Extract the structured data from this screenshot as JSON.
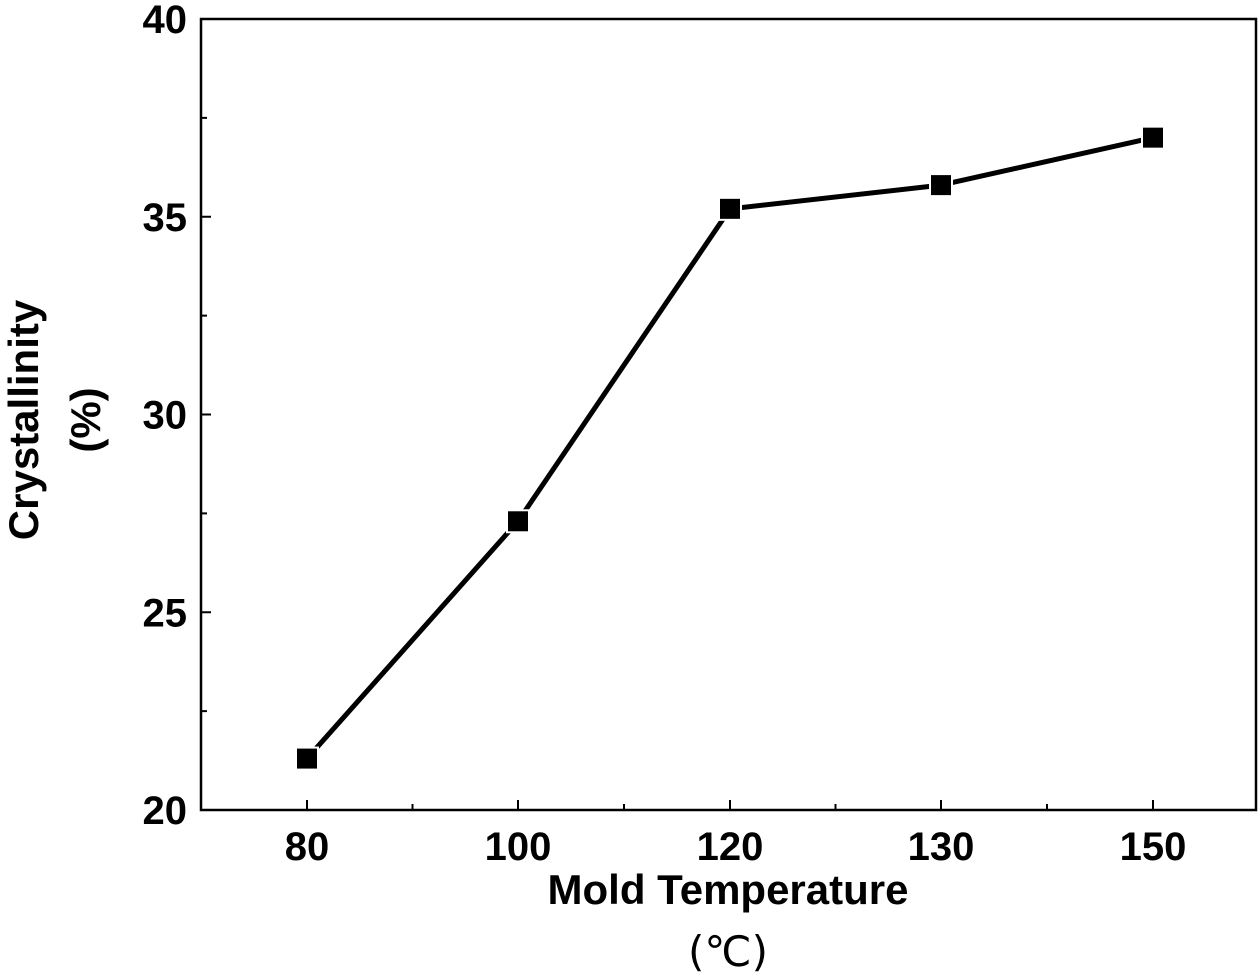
{
  "chart_data": {
    "type": "line",
    "categories": [
      "80",
      "100",
      "120",
      "130",
      "150"
    ],
    "series": [
      {
        "values": [
          21.3,
          27.3,
          35.2,
          35.8,
          37.0
        ]
      }
    ],
    "xlabel": "Mold Temperature",
    "xunit": "(℃)",
    "ylabel": "Crystallinity",
    "yunit": "(%)",
    "ylim": [
      20,
      40
    ],
    "yticks": [
      "20",
      "25",
      "30",
      "35",
      "40"
    ],
    "marker": "square",
    "line_color": "#000000",
    "grid": false
  }
}
